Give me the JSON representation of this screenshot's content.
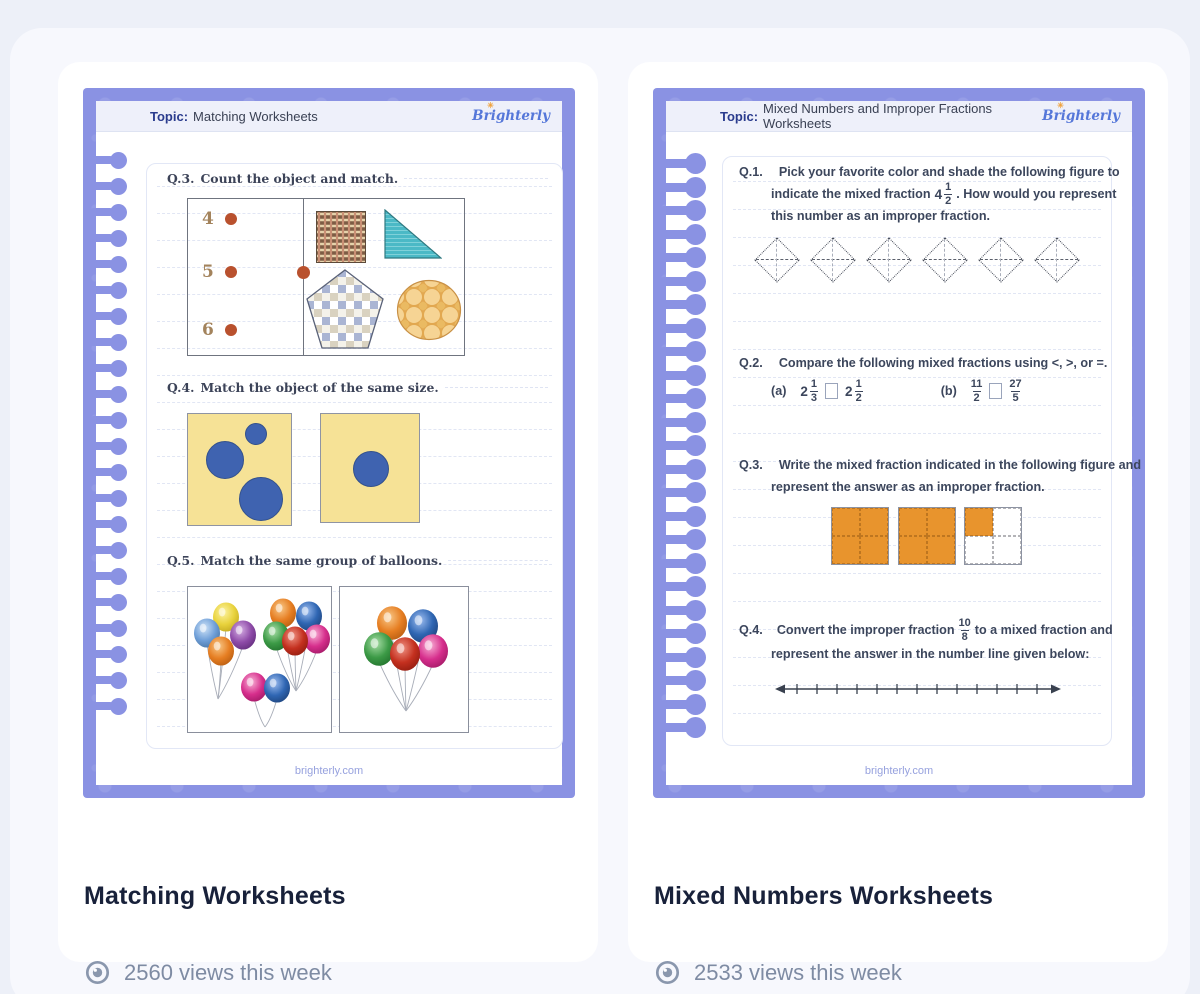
{
  "colors": {
    "frame_purple": "#8a92e3",
    "topic_blue": "#2b3c8e",
    "title_navy": "#18213a",
    "views_gray": "#7e8ba3",
    "orange_fill": "#e8942d",
    "footer_periwinkle": "#96a1de",
    "dot_rust": "#b9512e",
    "circle_blue": "#3f63b0",
    "square_yellow": "#f6e296"
  },
  "cards": [
    {
      "title": "Matching Worksheets",
      "views": "2560 views this week",
      "sheet": {
        "topic_label": "Topic:",
        "topic_title": "Matching Worksheets",
        "brand": "Brighterly",
        "footer": "brighterly.com",
        "q3": {
          "id": "Q.3.",
          "text": "Count the object and match.",
          "numbers": [
            "4",
            "5",
            "6"
          ]
        },
        "q4": {
          "id": "Q.4.",
          "text": "Match the object of the same size."
        },
        "q5": {
          "id": "Q.5.",
          "text": "Match the same group of balloons."
        }
      }
    },
    {
      "title": "Mixed Numbers Worksheets",
      "views": "2533 views this week",
      "sheet": {
        "topic_label": "Topic:",
        "topic_title": "Mixed Numbers and Improper Fractions Worksheets",
        "brand": "Brighterly",
        "footer": "brighterly.com",
        "q1": {
          "id": "Q.1.",
          "line1": "Pick your favorite color and shade the following figure to",
          "line2_pre": "indicate the mixed fraction",
          "whole": "4",
          "num": "1",
          "den": "2",
          "line2_post": ". How would you represent",
          "line3": "this number as an improper fraction."
        },
        "q2": {
          "id": "Q.2.",
          "text": "Compare the following mixed fractions using <, >, or =.",
          "a_label": "(a)",
          "a1_whole": "2",
          "a1_num": "1",
          "a1_den": "3",
          "a2_whole": "2",
          "a2_num": "1",
          "a2_den": "2",
          "b_label": "(b)",
          "b1_num": "11",
          "b1_den": "2",
          "b2_num": "27",
          "b2_den": "5"
        },
        "q3": {
          "id": "Q.3.",
          "line1": "Write the mixed fraction indicated in the following figure and",
          "line2": "represent the answer as an improper fraction."
        },
        "q4": {
          "id": "Q.4.",
          "pre": "Convert the improper fraction",
          "num": "10",
          "den": "8",
          "post": "to a mixed fraction and",
          "line2": "represent the answer in the number line given below:"
        }
      }
    }
  ]
}
